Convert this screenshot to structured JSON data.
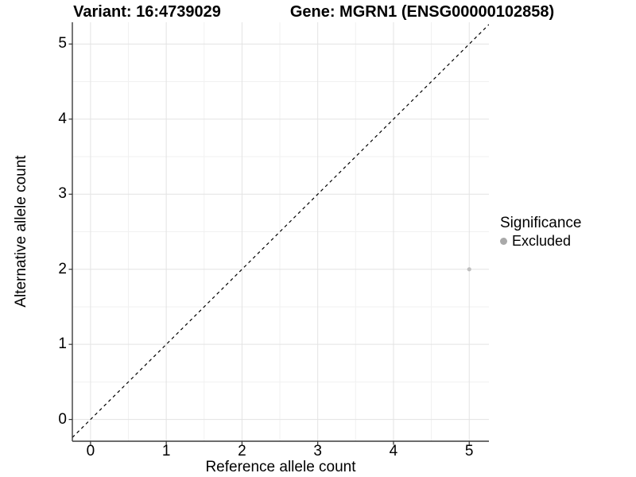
{
  "figure": {
    "title_left": "Variant: 16:4739029",
    "title_right": "Gene: MGRN1 (ENSG00000102858)"
  },
  "chart_data": {
    "type": "scatter",
    "title": "Variant: 16:4739029 — Gene: MGRN1 (ENSG00000102858)",
    "xlabel": "Reference allele count",
    "ylabel": "Alternative allele count",
    "xlim": [
      -0.24,
      5.26
    ],
    "ylim": [
      -0.29,
      5.29
    ],
    "xticks": [
      0,
      1,
      2,
      3,
      4,
      5
    ],
    "yticks": [
      0,
      1,
      2,
      3,
      4,
      5
    ],
    "minor_ticks": [
      0.5,
      1.5,
      2.5,
      3.5,
      4.5
    ],
    "grid": true,
    "points": [
      {
        "x": 5,
        "y": 2,
        "series": "Excluded"
      }
    ],
    "reference_line": {
      "type": "identity",
      "style": "dashed",
      "dash": "4,4"
    },
    "legend": {
      "title": "Significance",
      "position": "right",
      "items": [
        {
          "label": "Excluded",
          "color": "#a9a9a9"
        }
      ]
    }
  },
  "colors": {
    "background": "#ffffff",
    "major_grid": "#e3e3e3",
    "minor_grid": "#f1f1f1",
    "axis_line": "#3c3c3c",
    "tick_mark": "#333333",
    "point_fill": "#bfbfbf",
    "reference_line": "#000000",
    "text": "#000000"
  }
}
